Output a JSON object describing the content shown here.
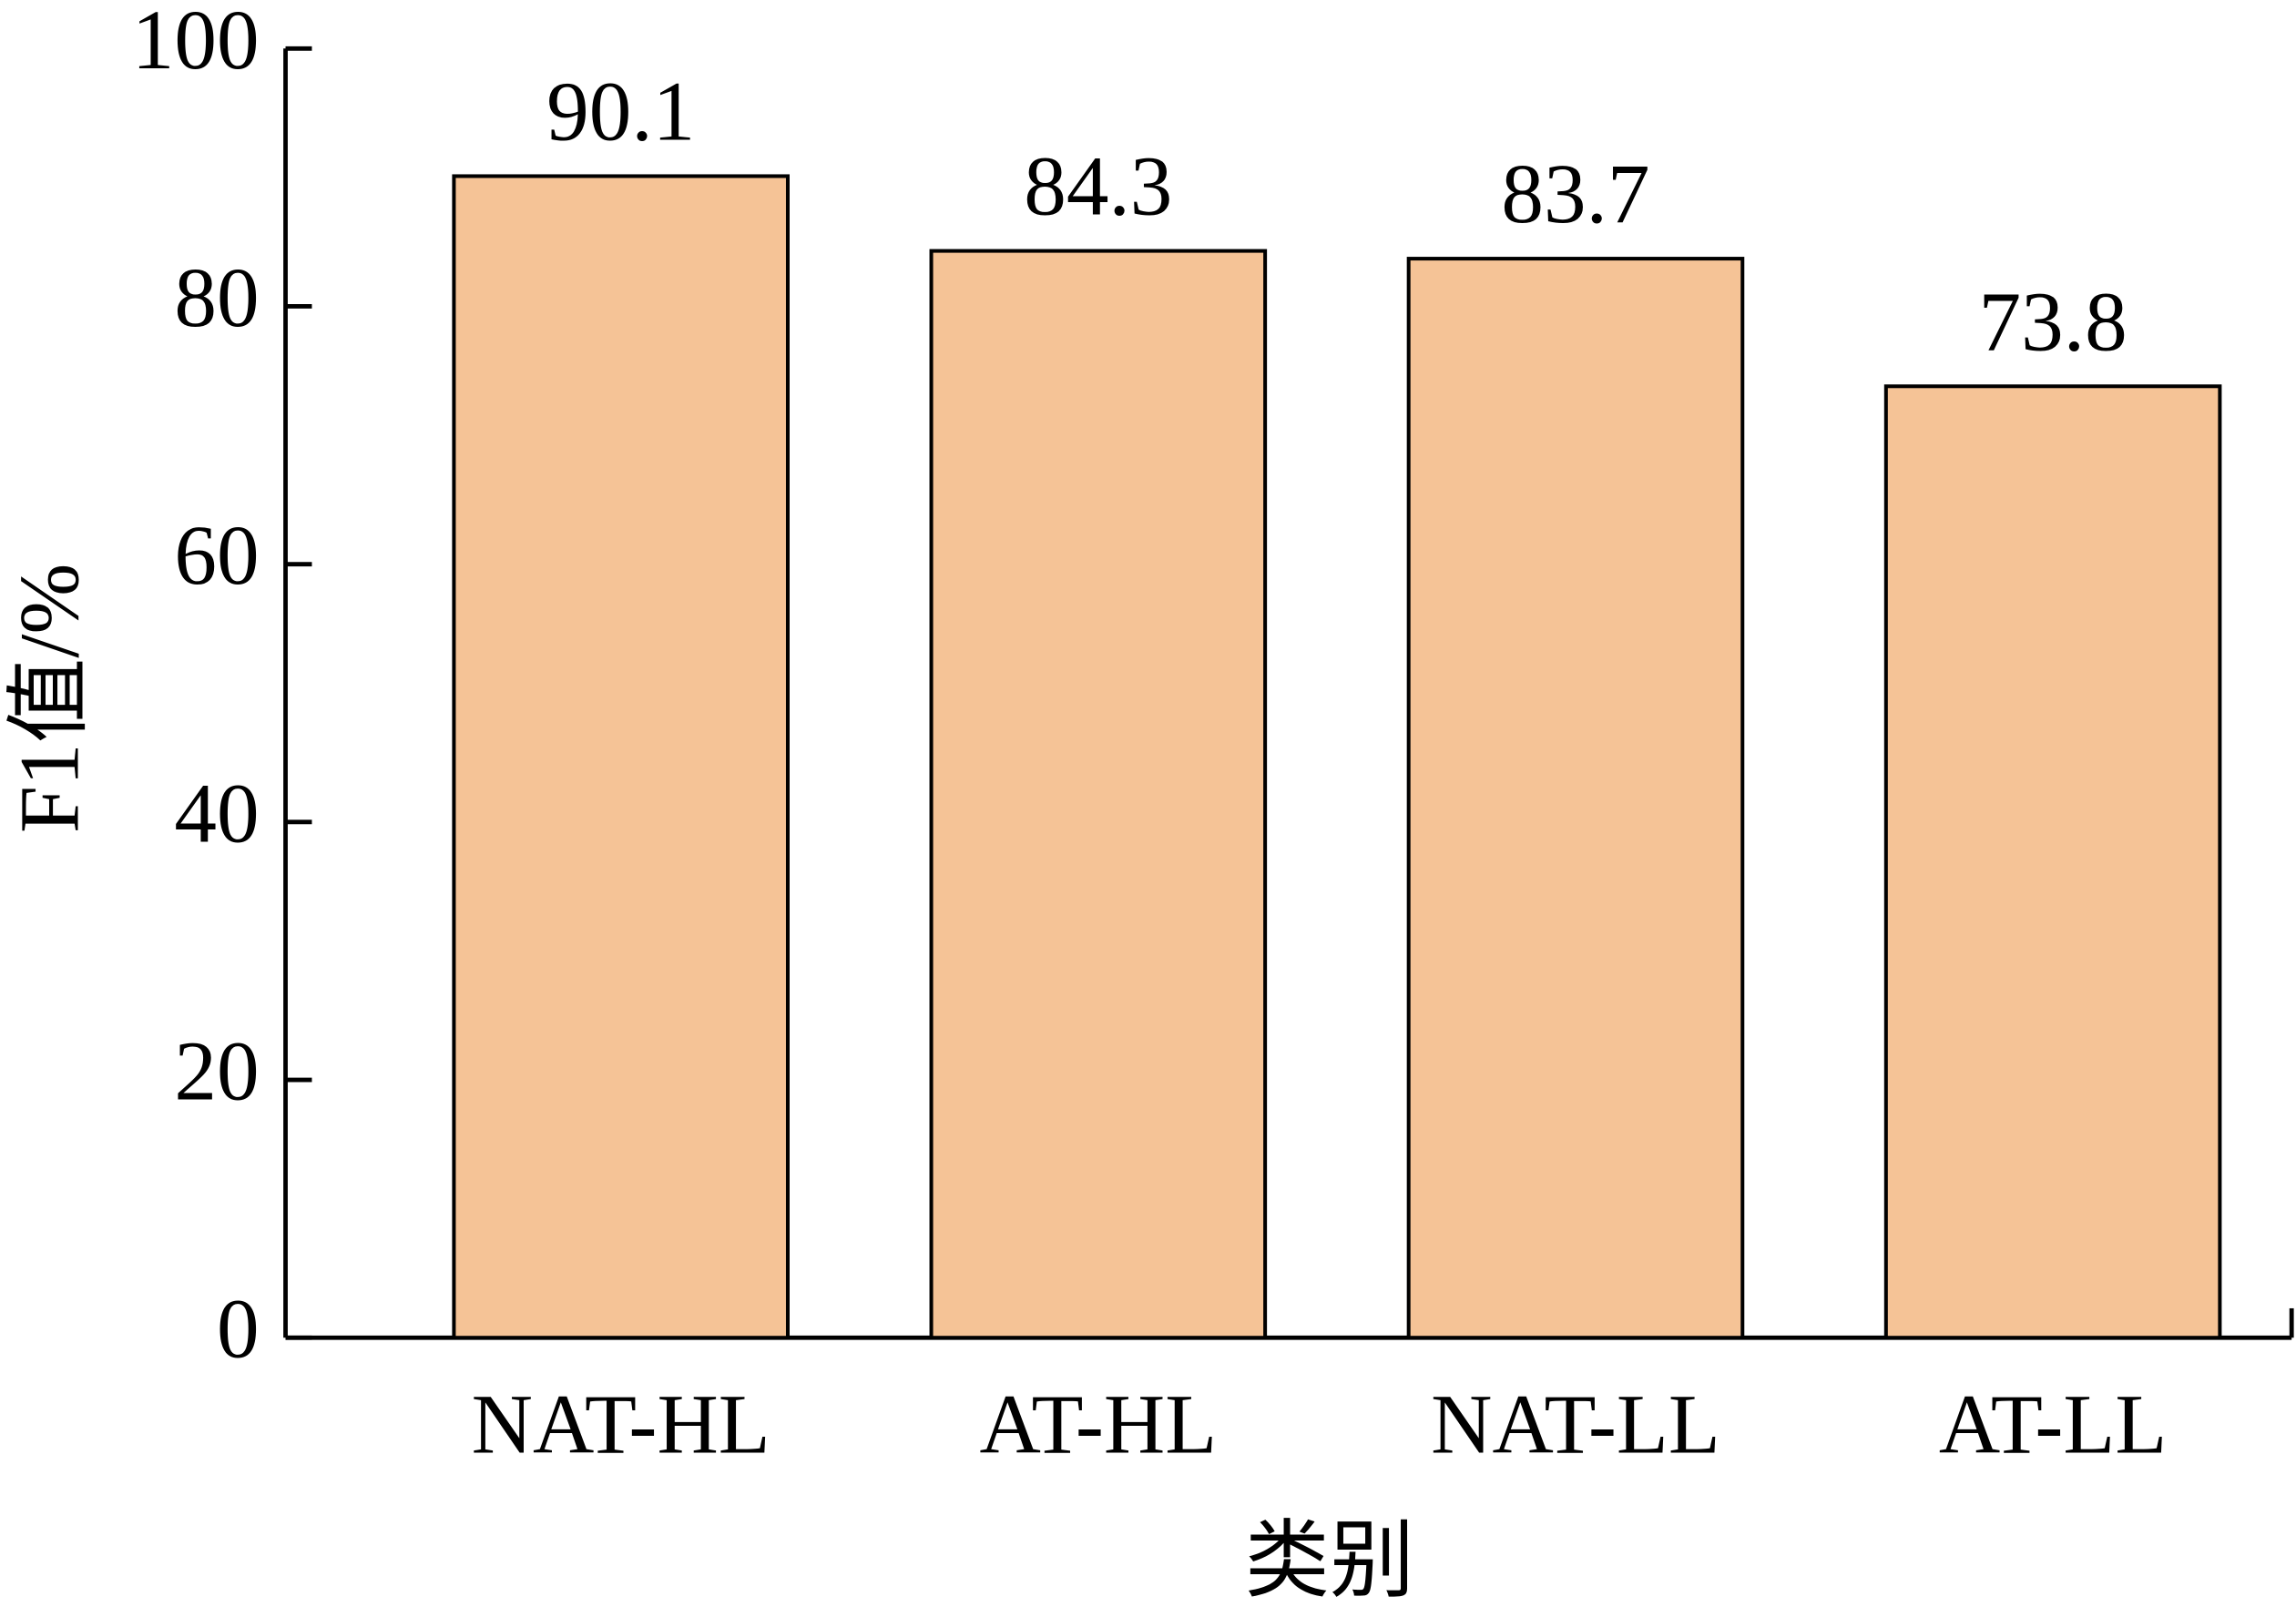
{
  "chart_data": {
    "type": "bar",
    "categories": [
      "NAT-HL",
      "AT-HL",
      "NAT-LL",
      "AT-LL"
    ],
    "values": [
      90.1,
      84.3,
      83.7,
      73.8
    ],
    "color": "#f5c396",
    "ylim": [
      0,
      100
    ],
    "yticks": [
      0,
      20,
      40,
      60,
      80,
      100
    ],
    "x_label": "类别",
    "y_label": "F1值/%"
  }
}
